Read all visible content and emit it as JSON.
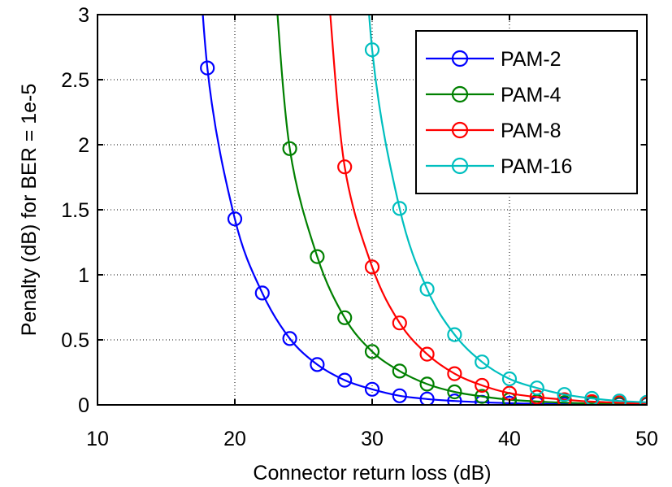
{
  "chart_data": {
    "type": "line",
    "xlabel": "Connector return loss (dB)",
    "ylabel": "Penalty (dB) for BER = 1e-5",
    "xlim": [
      10,
      50
    ],
    "ylim": [
      0,
      3
    ],
    "xticks": [
      10,
      20,
      30,
      40,
      50
    ],
    "yticks": [
      0,
      0.5,
      1,
      1.5,
      2,
      2.5,
      3
    ],
    "xtick_labels": [
      "10",
      "20",
      "30",
      "40",
      "50"
    ],
    "ytick_labels": [
      "0",
      "0.5",
      "1",
      "1.5",
      "2",
      "2.5",
      "3"
    ],
    "grid": true,
    "legend_position": "top-right",
    "series": [
      {
        "name": "PAM-2",
        "color": "#0000ff",
        "x": [
          18,
          20,
          22,
          24,
          26,
          28,
          30,
          32,
          34,
          36,
          38,
          40,
          42,
          44,
          46,
          48,
          50
        ],
        "y": [
          2.59,
          1.43,
          0.86,
          0.51,
          0.31,
          0.19,
          0.12,
          0.07,
          0.045,
          0.03,
          0.02,
          0.013,
          0.009,
          0.006,
          0.004,
          0.003,
          0.002
        ]
      },
      {
        "name": "PAM-4",
        "color": "#008000",
        "x": [
          24,
          26,
          28,
          30,
          32,
          34,
          36,
          38,
          40,
          42,
          44,
          46,
          48,
          50
        ],
        "y": [
          1.97,
          1.14,
          0.67,
          0.41,
          0.26,
          0.16,
          0.1,
          0.065,
          0.04,
          0.026,
          0.017,
          0.011,
          0.007,
          0.005
        ]
      },
      {
        "name": "PAM-8",
        "color": "#ff0000",
        "x": [
          28,
          30,
          32,
          34,
          36,
          38,
          40,
          42,
          44,
          46,
          48,
          50
        ],
        "y": [
          1.83,
          1.06,
          0.63,
          0.39,
          0.24,
          0.15,
          0.09,
          0.06,
          0.04,
          0.025,
          0.016,
          0.01
        ]
      },
      {
        "name": "PAM-16",
        "color": "#00bfbf",
        "x": [
          30,
          32,
          34,
          36,
          38,
          40,
          42,
          44,
          46,
          48,
          50
        ],
        "y": [
          2.73,
          1.51,
          0.89,
          0.54,
          0.33,
          0.2,
          0.13,
          0.08,
          0.05,
          0.03,
          0.02
        ]
      }
    ]
  }
}
